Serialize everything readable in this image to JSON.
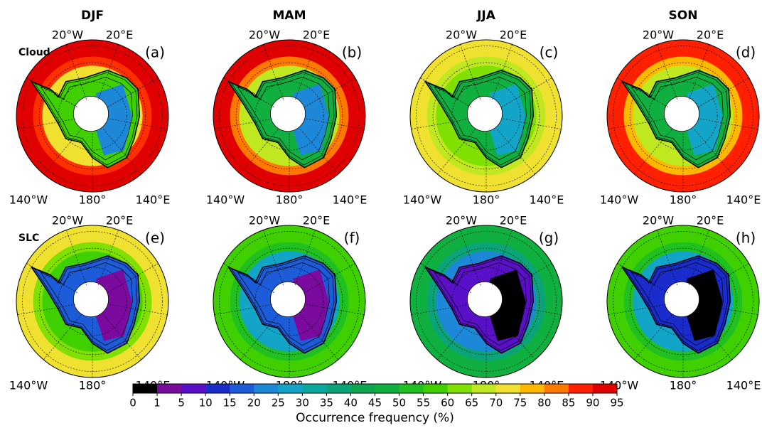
{
  "figure": {
    "column_titles": [
      "DJF",
      "MAM",
      "JJA",
      "SON"
    ],
    "panels": [
      {
        "label": "(a)",
        "row_label": "Cloud",
        "lon_labels": [
          "20°W",
          "20°E",
          "140°W",
          "180°",
          "140°E"
        ],
        "colors": [
          "#e00000",
          "#ff3000",
          "#f0e030",
          "#40d000",
          "#1d88d8"
        ]
      },
      {
        "label": "(b)",
        "lon_labels": [
          "20°W",
          "20°E",
          "140°W",
          "180°",
          "140°E"
        ],
        "colors": [
          "#e00000",
          "#ff7800",
          "#c0e820",
          "#10b040",
          "#1d88d8"
        ]
      },
      {
        "label": "(c)",
        "lon_labels": [
          "20°W",
          "20°E",
          "140°W",
          "180°",
          "140°E"
        ],
        "colors": [
          "#f0e030",
          "#c0e820",
          "#80e000",
          "#10b040",
          "#12a5c7"
        ]
      },
      {
        "label": "(d)",
        "lon_labels": [
          "20°W",
          "20°E",
          "140°W",
          "180°",
          "140°E"
        ],
        "colors": [
          "#ff2000",
          "#ffb800",
          "#c0e820",
          "#10b040",
          "#12a5c7"
        ]
      },
      {
        "label": "(e)",
        "row_label": "SLC",
        "lon_labels": [
          "20°W",
          "20°E",
          "140°W",
          "180°",
          "140°E"
        ],
        "colors": [
          "#f0e030",
          "#80e000",
          "#40d000",
          "#1c5cd8",
          "#7b0a9f"
        ]
      },
      {
        "label": "(f)",
        "lon_labels": [
          "20°W",
          "20°E",
          "140°W",
          "180°",
          "140°E"
        ],
        "colors": [
          "#40d000",
          "#20c020",
          "#12a5c7",
          "#1c5cd8",
          "#7b0a9f"
        ]
      },
      {
        "label": "(g)",
        "lon_labels": [
          "20°W",
          "20°E",
          "140°W",
          "180°",
          "140°E"
        ],
        "colors": [
          "#10b040",
          "#0aa478",
          "#1d88d8",
          "#5a10c8",
          "#000000"
        ]
      },
      {
        "label": "(h)",
        "lon_labels": [
          "20°W",
          "20°E",
          "140°W",
          "180°",
          "140°E"
        ],
        "colors": [
          "#40d000",
          "#20c020",
          "#12a5c7",
          "#1a2ccc",
          "#000000"
        ]
      }
    ],
    "colorbar": {
      "label": "Occurrence frequency (%)",
      "boundaries": [
        0,
        1,
        5,
        10,
        15,
        20,
        25,
        30,
        35,
        40,
        45,
        50,
        55,
        60,
        65,
        70,
        75,
        80,
        85,
        90,
        95
      ],
      "colors": [
        "#000000",
        "#7b0a9f",
        "#5a10c8",
        "#1a2ccc",
        "#1c5cd8",
        "#1d88d8",
        "#12a5c7",
        "#0aa9a0",
        "#0aa478",
        "#0ca550",
        "#10b040",
        "#20c020",
        "#40d000",
        "#80e000",
        "#c0e820",
        "#f0e030",
        "#ffb800",
        "#ff7800",
        "#ff2000",
        "#e00000"
      ]
    }
  }
}
